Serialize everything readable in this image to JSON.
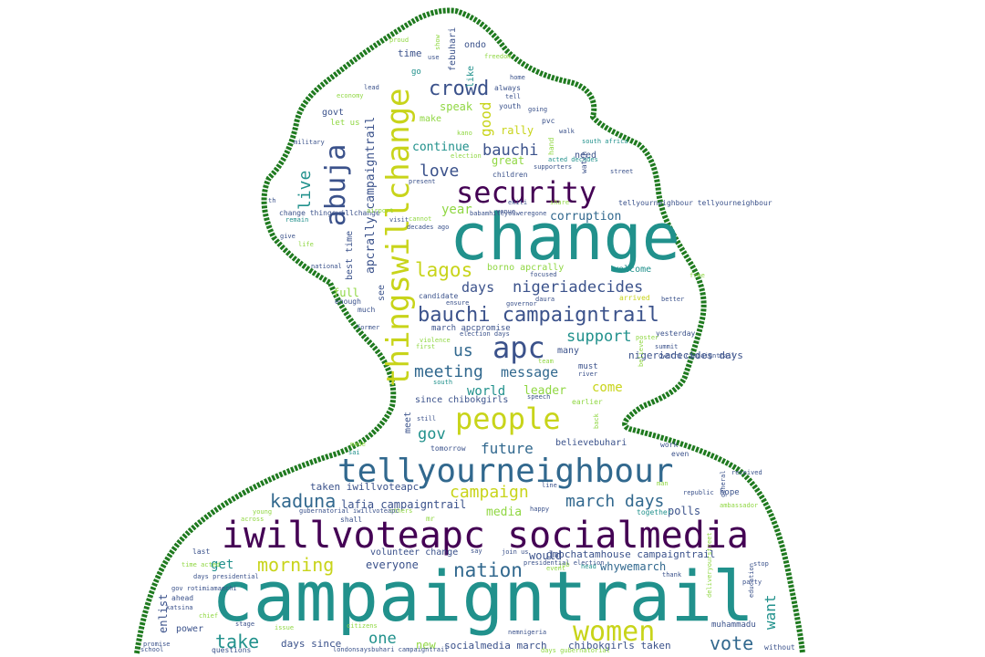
{
  "colors": {
    "background": "#ffffff",
    "outline": "#1f7a1f",
    "purple": "#440154",
    "indigo": "#3b528b",
    "blue": "#31688e",
    "teal": "#21918c",
    "green": "#35b779",
    "lime": "#90d743",
    "yellow": "#c8d41a"
  },
  "words": [
    {
      "text": "campaigntrail",
      "color": "teal"
    },
    {
      "text": "change",
      "color": "teal"
    },
    {
      "text": "iwillvoteapc socialmedia",
      "color": "purple"
    },
    {
      "text": "tellyourneighbour",
      "color": "blue"
    },
    {
      "text": "thingswillchange",
      "color": "yellow"
    },
    {
      "text": "security",
      "color": "purple"
    },
    {
      "text": "people",
      "color": "yellow"
    },
    {
      "text": "apc",
      "color": "indigo"
    },
    {
      "text": "women",
      "color": "yellow"
    },
    {
      "text": "abuja",
      "color": "indigo"
    },
    {
      "text": "bauchi campaigntrail",
      "color": "indigo"
    },
    {
      "text": "crowd",
      "color": "indigo"
    },
    {
      "text": "lagos",
      "color": "yellow"
    },
    {
      "text": "nation",
      "color": "blue"
    },
    {
      "text": "kaduna",
      "color": "blue"
    },
    {
      "text": "morning",
      "color": "yellow"
    },
    {
      "text": "take",
      "color": "teal"
    },
    {
      "text": "vote",
      "color": "blue"
    },
    {
      "text": "march days",
      "color": "blue"
    },
    {
      "text": "love",
      "color": "indigo"
    },
    {
      "text": "meeting",
      "color": "blue"
    },
    {
      "text": "campaign",
      "color": "yellow"
    },
    {
      "text": "nigeriadecides",
      "color": "indigo"
    },
    {
      "text": "support",
      "color": "teal"
    },
    {
      "text": "bauchi",
      "color": "indigo"
    },
    {
      "text": "future",
      "color": "blue"
    },
    {
      "text": "live",
      "color": "teal"
    },
    {
      "text": "message",
      "color": "blue"
    },
    {
      "text": "gov",
      "color": "teal"
    },
    {
      "text": "days",
      "color": "indigo"
    },
    {
      "text": "us",
      "color": "blue"
    },
    {
      "text": "one",
      "color": "teal"
    },
    {
      "text": "corruption",
      "color": "blue"
    },
    {
      "text": "continue",
      "color": "teal"
    },
    {
      "text": "apcrally campaigntrail",
      "color": "indigo"
    },
    {
      "text": "good",
      "color": "yellow"
    },
    {
      "text": "year",
      "color": "lime"
    },
    {
      "text": "world",
      "color": "teal"
    },
    {
      "text": "leader",
      "color": "lime"
    },
    {
      "text": "come",
      "color": "yellow"
    },
    {
      "text": "media",
      "color": "lime"
    },
    {
      "text": "want",
      "color": "teal"
    },
    {
      "text": "lafia campaigntrail",
      "color": "indigo"
    },
    {
      "text": "whywemarch",
      "color": "blue"
    },
    {
      "text": "everyone",
      "color": "indigo"
    },
    {
      "text": "polls",
      "color": "indigo"
    },
    {
      "text": "get",
      "color": "teal"
    },
    {
      "text": "full",
      "color": "lime"
    },
    {
      "text": "speak",
      "color": "lime"
    },
    {
      "text": "great",
      "color": "lime"
    },
    {
      "text": "rally",
      "color": "yellow"
    },
    {
      "text": "time",
      "color": "indigo"
    },
    {
      "text": "ondo",
      "color": "indigo"
    },
    {
      "text": "febuhari",
      "color": "indigo"
    },
    {
      "text": "like",
      "color": "teal"
    },
    {
      "text": "need",
      "color": "indigo"
    },
    {
      "text": "welcome",
      "color": "teal"
    },
    {
      "text": "gmbchatamhouse campaigntrail",
      "color": "indigo"
    },
    {
      "text": "taken iwillvoteapc",
      "color": "indigo"
    },
    {
      "text": "socialmedia march",
      "color": "indigo"
    },
    {
      "text": "chibokgirls taken",
      "color": "indigo"
    },
    {
      "text": "days since",
      "color": "indigo"
    },
    {
      "text": "since chibokgirls",
      "color": "indigo"
    },
    {
      "text": "believebuhari",
      "color": "indigo"
    },
    {
      "text": "volunteer change",
      "color": "indigo"
    },
    {
      "text": "borno apcrally",
      "color": "lime"
    },
    {
      "text": "power",
      "color": "indigo"
    },
    {
      "text": "enlist",
      "color": "indigo"
    },
    {
      "text": "new",
      "color": "lime"
    },
    {
      "text": "see",
      "color": "indigo"
    },
    {
      "text": "best time",
      "color": "indigo"
    },
    {
      "text": "march apcpromise",
      "color": "indigo"
    },
    {
      "text": "nigeriadecides days",
      "color": "indigo"
    },
    {
      "text": "must",
      "color": "indigo"
    },
    {
      "text": "many",
      "color": "indigo"
    },
    {
      "text": "govt",
      "color": "indigo"
    },
    {
      "text": "make",
      "color": "lime"
    },
    {
      "text": "let us",
      "color": "lime"
    },
    {
      "text": "go",
      "color": "teal"
    },
    {
      "text": "always",
      "color": "indigo"
    },
    {
      "text": "youth",
      "color": "indigo"
    },
    {
      "text": "pvc",
      "color": "indigo"
    },
    {
      "text": "meet",
      "color": "indigo"
    },
    {
      "text": "earlier",
      "color": "lime"
    },
    {
      "text": "hope",
      "color": "indigo"
    },
    {
      "text": "muhammadu",
      "color": "indigo"
    },
    {
      "text": "yesterday",
      "color": "indigo"
    },
    {
      "text": "candidate",
      "color": "indigo"
    },
    {
      "text": "ahead",
      "color": "indigo"
    },
    {
      "text": "enough",
      "color": "indigo"
    },
    {
      "text": "much",
      "color": "indigo"
    },
    {
      "text": "shall",
      "color": "indigo"
    },
    {
      "text": "tomorrow",
      "color": "indigo"
    },
    {
      "text": "work",
      "color": "indigo"
    },
    {
      "text": "even",
      "color": "indigo"
    },
    {
      "text": "would",
      "color": "indigo"
    },
    {
      "text": "mr",
      "color": "lime"
    },
    {
      "text": "last",
      "color": "indigo"
    },
    {
      "text": "tellyourneighbour tellyourneighbour",
      "color": "indigo"
    },
    {
      "text": "change thingswillchange",
      "color": "indigo"
    },
    {
      "text": "remain",
      "color": "teal"
    },
    {
      "text": "economy",
      "color": "lime"
    },
    {
      "text": "supporters",
      "color": "indigo"
    },
    {
      "text": "acted decades",
      "color": "teal"
    },
    {
      "text": "children",
      "color": "indigo"
    },
    {
      "text": "watch",
      "color": "indigo"
    },
    {
      "text": "arrived",
      "color": "yellow"
    },
    {
      "text": "say",
      "color": "indigo"
    },
    {
      "text": "together",
      "color": "teal"
    },
    {
      "text": "thank",
      "color": "indigo"
    },
    {
      "text": "head",
      "color": "teal"
    },
    {
      "text": "job",
      "color": "lime"
    },
    {
      "text": "line",
      "color": "indigo"
    },
    {
      "text": "man",
      "color": "lime"
    },
    {
      "text": "received",
      "color": "indigo"
    },
    {
      "text": "republic",
      "color": "indigo"
    },
    {
      "text": "party",
      "color": "indigo"
    },
    {
      "text": "without",
      "color": "indigo"
    },
    {
      "text": "stop",
      "color": "indigo"
    },
    {
      "text": "citizens",
      "color": "lime"
    },
    {
      "text": "promise",
      "color": "indigo"
    },
    {
      "text": "questions",
      "color": "indigo"
    },
    {
      "text": "school",
      "color": "indigo"
    },
    {
      "text": "katsina",
      "color": "indigo"
    },
    {
      "text": "gov rotimiamaechi",
      "color": "indigo"
    },
    {
      "text": "chief",
      "color": "lime"
    },
    {
      "text": "life",
      "color": "lime"
    },
    {
      "text": "give",
      "color": "indigo"
    },
    {
      "text": "national",
      "color": "indigo"
    },
    {
      "text": "former",
      "color": "indigo"
    },
    {
      "text": "violence",
      "color": "lime"
    },
    {
      "text": "first",
      "color": "lime"
    },
    {
      "text": "ensure",
      "color": "indigo"
    },
    {
      "text": "daura",
      "color": "indigo"
    },
    {
      "text": "focused",
      "color": "indigo"
    },
    {
      "text": "election days",
      "color": "indigo"
    },
    {
      "text": "summit",
      "color": "indigo"
    },
    {
      "text": "free",
      "color": "lime"
    },
    {
      "text": "better",
      "color": "indigo"
    },
    {
      "text": "river",
      "color": "indigo"
    },
    {
      "text": "believe",
      "color": "lime"
    },
    {
      "text": "owerri campaigntrail",
      "color": "indigo"
    },
    {
      "text": "still",
      "color": "indigo"
    },
    {
      "text": "back",
      "color": "lime"
    },
    {
      "text": "speech",
      "color": "indigo"
    },
    {
      "text": "south",
      "color": "teal"
    },
    {
      "text": "made",
      "color": "lime"
    },
    {
      "text": "sai",
      "color": "teal"
    },
    {
      "text": "days presidential",
      "color": "indigo"
    },
    {
      "text": "time acted",
      "color": "lime"
    },
    {
      "text": "presidential election",
      "color": "indigo"
    },
    {
      "text": "join us",
      "color": "indigo"
    },
    {
      "text": "happy",
      "color": "indigo"
    },
    {
      "text": "others",
      "color": "lime"
    },
    {
      "text": "gubernatorial iwillvoteapc",
      "color": "indigo"
    },
    {
      "text": "young",
      "color": "lime"
    },
    {
      "text": "across",
      "color": "lime"
    },
    {
      "text": "issue",
      "color": "lime"
    },
    {
      "text": "stage",
      "color": "indigo"
    },
    {
      "text": "nemnigeria",
      "color": "indigo"
    },
    {
      "text": "londonsaysbuhari campaigntrail",
      "color": "indigo"
    },
    {
      "text": "days gubernatorial",
      "color": "lime"
    },
    {
      "text": "deliveryourstreet",
      "color": "lime"
    },
    {
      "text": "education",
      "color": "indigo"
    },
    {
      "text": "ambassador",
      "color": "lime"
    },
    {
      "text": "general",
      "color": "indigo"
    },
    {
      "text": "cannot",
      "color": "lime"
    },
    {
      "text": "decades ago",
      "color": "indigo"
    },
    {
      "text": "babamhileyouweregone",
      "color": "indigo"
    },
    {
      "text": "venue",
      "color": "indigo"
    },
    {
      "text": "ekiti",
      "color": "indigo"
    },
    {
      "text": "share",
      "color": "lime"
    },
    {
      "text": "governor",
      "color": "indigo"
    },
    {
      "text": "present",
      "color": "indigo"
    },
    {
      "text": "street",
      "color": "indigo"
    },
    {
      "text": "south africa",
      "color": "teal"
    },
    {
      "text": "walk",
      "color": "indigo"
    },
    {
      "text": "tell",
      "color": "indigo"
    },
    {
      "text": "going",
      "color": "indigo"
    },
    {
      "text": "election",
      "color": "lime"
    },
    {
      "text": "kano",
      "color": "lime"
    },
    {
      "text": "military",
      "color": "indigo"
    },
    {
      "text": "th",
      "color": "indigo"
    },
    {
      "text": "airport",
      "color": "lime"
    },
    {
      "text": "visit",
      "color": "indigo"
    },
    {
      "text": "lead",
      "color": "indigo"
    },
    {
      "text": "use",
      "color": "indigo"
    },
    {
      "text": "show",
      "color": "lime"
    },
    {
      "text": "proud",
      "color": "lime"
    },
    {
      "text": "freedom",
      "color": "lime"
    },
    {
      "text": "home",
      "color": "indigo"
    },
    {
      "text": "poster",
      "color": "lime"
    },
    {
      "text": "team",
      "color": "lime"
    },
    {
      "text": "event",
      "color": "lime"
    },
    {
      "text": "hand",
      "color": "lime"
    },
    {
      "text": "ng",
      "color": "lime"
    },
    {
      "text": "every",
      "color": "yellow"
    }
  ]
}
